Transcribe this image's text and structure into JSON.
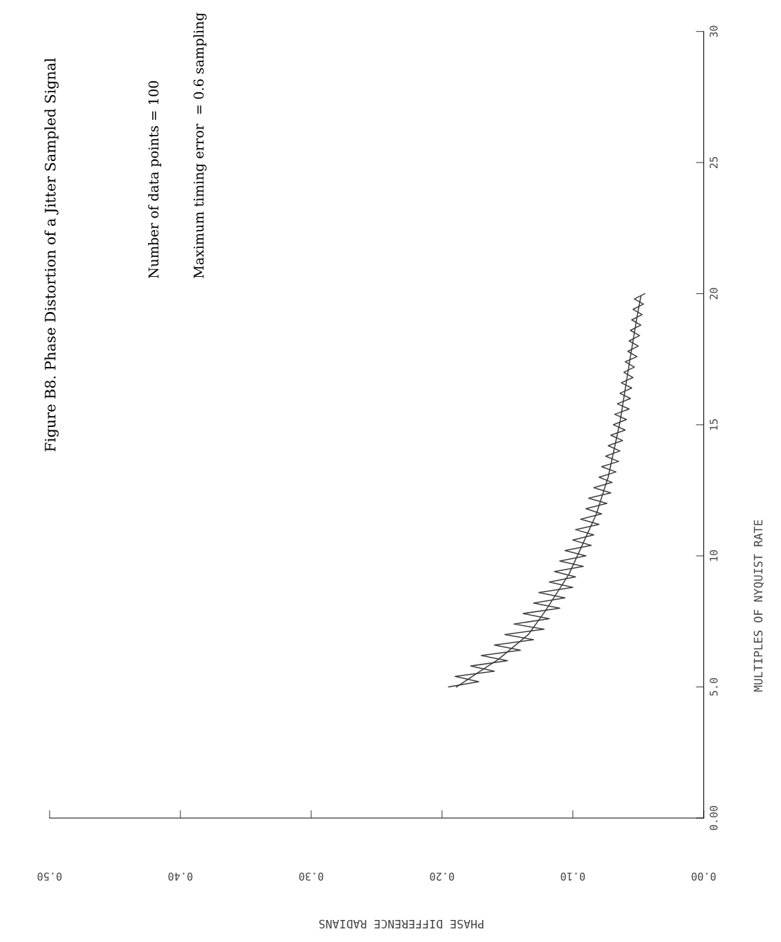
{
  "chart_data": {
    "type": "line",
    "title": "Figure B8. Phase Distortion of a Jitter Sampled Signal",
    "annotations": [
      "Number of data points = 100",
      "Maximum timing error  = 0.6 sampling"
    ],
    "xlabel": "PHASE DIFFERENCE RADIANS",
    "ylabel": "MULTIPLES OF NYQUIST RATE",
    "xlim": [
      0.5,
      0
    ],
    "xticks": [
      {
        "value": 0,
        "label": "0.00"
      },
      {
        "value": 0.1,
        "label": "0.10"
      },
      {
        "value": 0.2,
        "label": "0.20"
      },
      {
        "value": 0.3,
        "label": "0.30"
      },
      {
        "value": 0.4,
        "label": "0.40"
      },
      {
        "value": 0.5,
        "label": "0.50"
      }
    ],
    "ylim": [
      0,
      30
    ],
    "yticks": [
      {
        "value": 0,
        "label": "0.00"
      },
      {
        "value": 5,
        "label": "5.0"
      },
      10,
      15,
      20,
      25,
      30
    ],
    "grid": false,
    "series": [
      {
        "color": "#3a3a3a",
        "values": [
          5.0,
          5.2,
          5.4,
          5.6,
          5.8,
          6.0,
          6.2,
          6.4,
          6.6,
          6.8,
          7.0,
          7.2,
          7.4,
          7.6,
          7.8,
          8.0,
          8.2,
          8.4,
          8.6,
          8.8,
          9.0,
          9.2,
          9.4,
          9.6,
          9.8,
          10.0,
          10.2,
          10.4,
          10.6,
          10.8,
          11.0,
          11.2,
          11.4,
          11.6,
          11.8,
          12.0,
          12.2,
          12.4,
          12.6,
          12.8,
          13.0,
          13.2,
          13.4,
          13.6,
          13.8,
          14.0,
          14.2,
          14.4,
          14.6,
          14.8,
          15.0,
          15.2,
          15.4,
          15.6,
          15.8,
          16.0,
          16.2,
          16.4,
          16.6,
          16.8,
          17.0,
          17.2,
          17.4,
          17.6,
          17.8,
          18.0,
          18.2,
          18.4,
          18.6,
          18.8,
          19.0,
          19.2,
          19.4,
          19.6,
          19.8,
          20.0
        ],
        "x": [
          0.195,
          0.172,
          0.19,
          0.16,
          0.178,
          0.15,
          0.17,
          0.14,
          0.16,
          0.13,
          0.152,
          0.122,
          0.145,
          0.118,
          0.138,
          0.11,
          0.13,
          0.106,
          0.126,
          0.1,
          0.118,
          0.098,
          0.114,
          0.092,
          0.11,
          0.09,
          0.106,
          0.086,
          0.1,
          0.084,
          0.098,
          0.08,
          0.094,
          0.078,
          0.09,
          0.074,
          0.088,
          0.071,
          0.084,
          0.07,
          0.08,
          0.067,
          0.078,
          0.065,
          0.075,
          0.064,
          0.073,
          0.062,
          0.071,
          0.06,
          0.069,
          0.059,
          0.068,
          0.057,
          0.066,
          0.056,
          0.064,
          0.055,
          0.063,
          0.054,
          0.061,
          0.053,
          0.06,
          0.051,
          0.058,
          0.05,
          0.057,
          0.049,
          0.056,
          0.048,
          0.055,
          0.047,
          0.054,
          0.046,
          0.053,
          0.045
        ]
      },
      {
        "color": "#3a3a3a",
        "values": [
          5.0,
          5.66,
          6.05,
          7.0,
          7.9,
          9.3,
          10.5,
          11.6,
          12.7,
          13.0,
          15.1,
          17.3,
          19.1,
          19.9
        ],
        "x": [
          0.189,
          0.169,
          0.157,
          0.134,
          0.121,
          0.103,
          0.092,
          0.082,
          0.075,
          0.073,
          0.064,
          0.057,
          0.051,
          0.048
        ]
      }
    ]
  }
}
